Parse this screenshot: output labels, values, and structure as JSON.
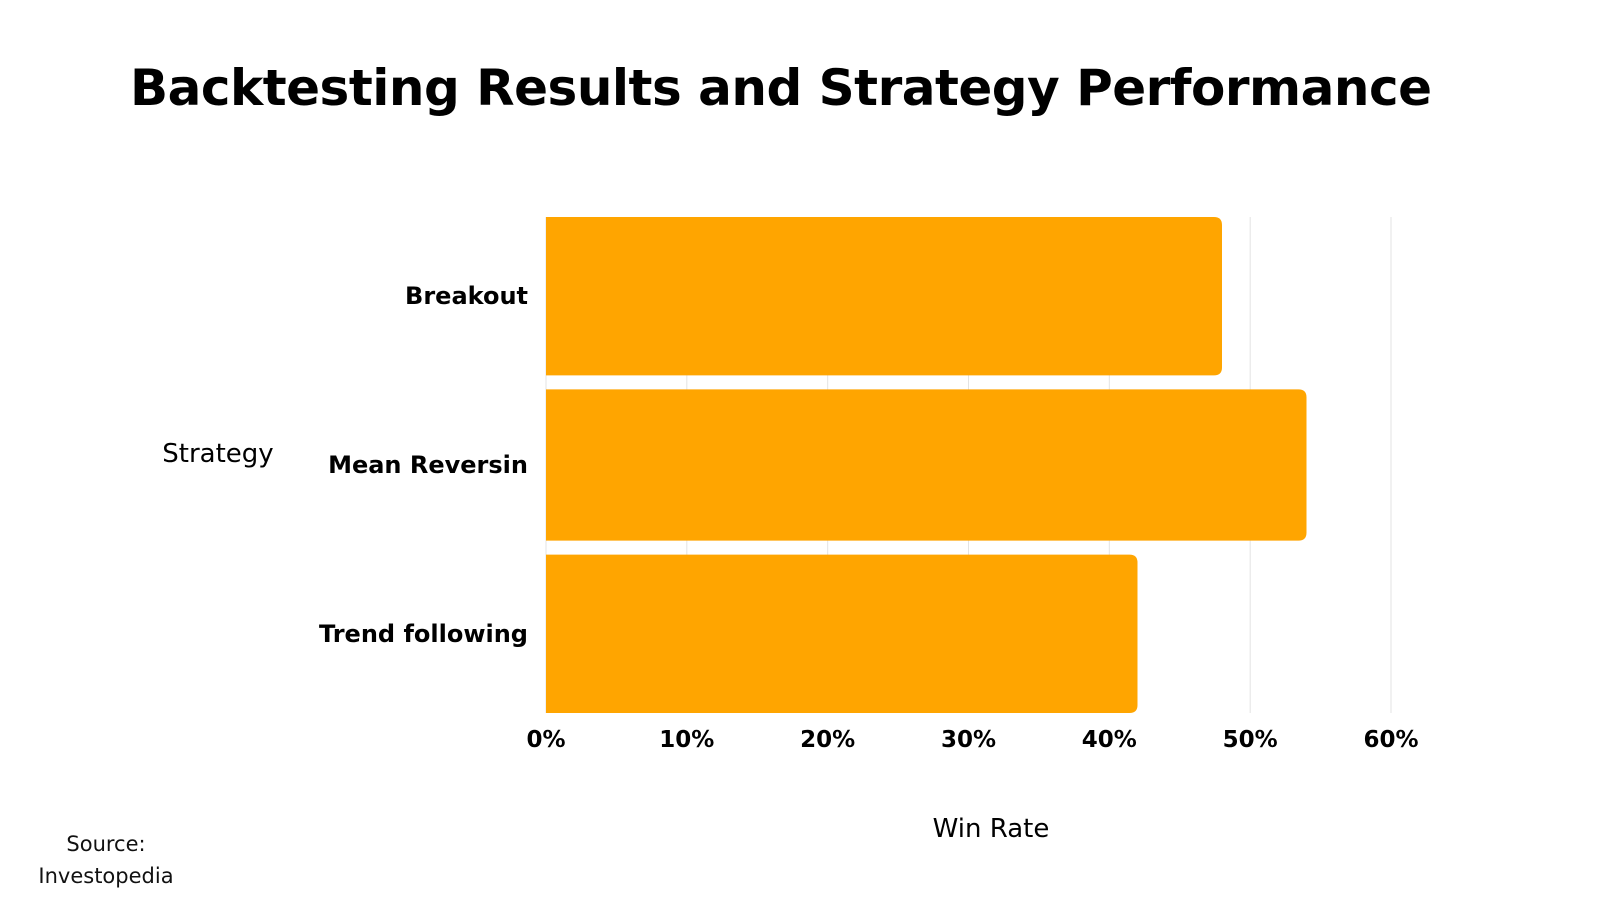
{
  "chart_data": {
    "type": "bar",
    "orientation": "horizontal",
    "title": "Backtesting Results and Strategy Performance",
    "xlabel": "Win Rate",
    "ylabel": "Strategy",
    "categories": [
      "Breakout",
      "Mean Reversin",
      "Trend following"
    ],
    "values": [
      48,
      54,
      42
    ],
    "xlim": [
      0,
      60
    ],
    "x_ticks": [
      0,
      10,
      20,
      30,
      40,
      50,
      60
    ],
    "tick_labels": [
      "0%",
      "10%",
      "20%",
      "30%",
      "40%",
      "50%",
      "60%"
    ],
    "grid": "vertical",
    "legend": "none",
    "bar_color": "#FFA500",
    "grid_color": "#E3E3E3"
  },
  "source": {
    "label": "Source:",
    "name": "Investopedia"
  }
}
